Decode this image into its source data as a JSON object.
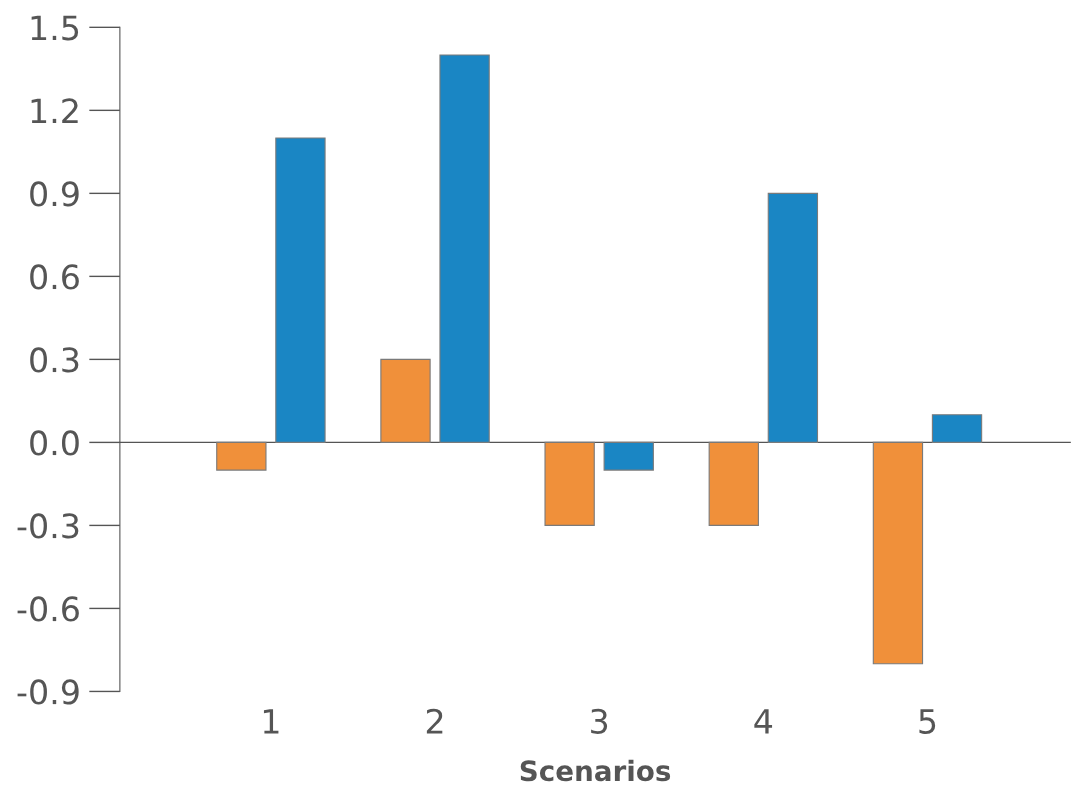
{
  "chart_data": {
    "type": "bar",
    "xlabel": "Scenarios",
    "categories": [
      "1",
      "2",
      "3",
      "4",
      "5"
    ],
    "series": [
      {
        "color": "#f0903a",
        "values": [
          -0.1,
          0.3,
          -0.3,
          -0.3,
          -0.8
        ]
      },
      {
        "color": "#1a86c4",
        "values": [
          1.1,
          1.4,
          -0.1,
          0.9,
          0.1
        ]
      }
    ],
    "ylim": [
      -0.9,
      1.5
    ],
    "yticks": [
      {
        "value": -0.9,
        "label": "-0.9"
      },
      {
        "value": -0.6,
        "label": "-0.6"
      },
      {
        "value": -0.3,
        "label": "-0.3"
      },
      {
        "value": 0,
        "label": "0.0"
      },
      {
        "value": 0.3,
        "label": "0.3"
      },
      {
        "value": 0.6,
        "label": "0.6"
      },
      {
        "value": 0.9,
        "label": "0.9"
      },
      {
        "value": 1.2,
        "label": "1.2"
      },
      {
        "value": 1.5,
        "label": "1.5"
      }
    ],
    "legend": false
  }
}
